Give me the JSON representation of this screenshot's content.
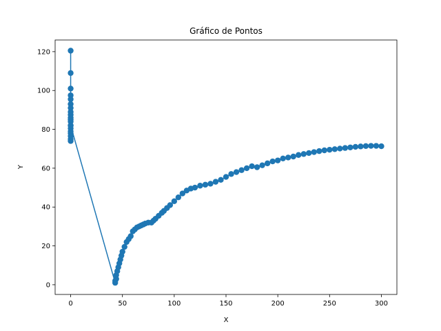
{
  "chart_data": {
    "type": "line",
    "title": "Gráfico de Pontos",
    "xlabel": "X",
    "ylabel": "Y",
    "xlim": [
      -15,
      315
    ],
    "ylim": [
      -5,
      126
    ],
    "x_ticks": [
      0,
      50,
      100,
      150,
      200,
      250,
      300
    ],
    "y_ticks": [
      0,
      20,
      40,
      60,
      80,
      100,
      120
    ],
    "grid": false,
    "legend": "none",
    "markers": true,
    "series": [
      {
        "color": "#1f77b4",
        "x": [
          0,
          0,
          0,
          0,
          0,
          0,
          0,
          0,
          0,
          0,
          0,
          0,
          0,
          0,
          0,
          0,
          0,
          0,
          0,
          0,
          43,
          43,
          44,
          44,
          45,
          46,
          47,
          48,
          49,
          50,
          52,
          54,
          56,
          58,
          60,
          62,
          64,
          66,
          68,
          70,
          72,
          75,
          78,
          80,
          82,
          85,
          88,
          90,
          93,
          96,
          100,
          104,
          108,
          112,
          116,
          120,
          125,
          130,
          135,
          140,
          145,
          150,
          155,
          160,
          165,
          170,
          175,
          180,
          185,
          190,
          195,
          200,
          205,
          210,
          215,
          220,
          225,
          230,
          235,
          240,
          245,
          250,
          255,
          260,
          265,
          270,
          275,
          280,
          285,
          290,
          295,
          300
        ],
        "y": [
          120.5,
          109,
          101,
          97.5,
          95.5,
          93,
          91,
          89,
          87.5,
          86,
          85,
          84,
          82,
          80.5,
          79,
          78,
          76.5,
          75,
          74,
          82,
          1,
          2,
          3,
          5,
          7,
          9,
          11,
          13,
          15,
          17,
          19.5,
          22,
          23.5,
          25,
          27.5,
          28.5,
          29.5,
          30,
          30.5,
          31,
          31.5,
          32,
          32,
          33,
          34,
          35.5,
          37,
          38,
          39.5,
          41,
          43,
          45,
          47,
          48.5,
          49.5,
          50,
          51,
          51.5,
          52,
          53,
          54,
          55.5,
          57,
          58,
          59,
          60,
          61,
          60.5,
          61.5,
          62.5,
          63.5,
          64,
          65,
          65.5,
          66,
          66.8,
          67.3,
          67.8,
          68.3,
          68.8,
          69.2,
          69.5,
          69.8,
          70.1,
          70.4,
          70.7,
          71,
          71.2,
          71.4,
          71.5,
          71.5,
          71.3
        ]
      }
    ]
  }
}
